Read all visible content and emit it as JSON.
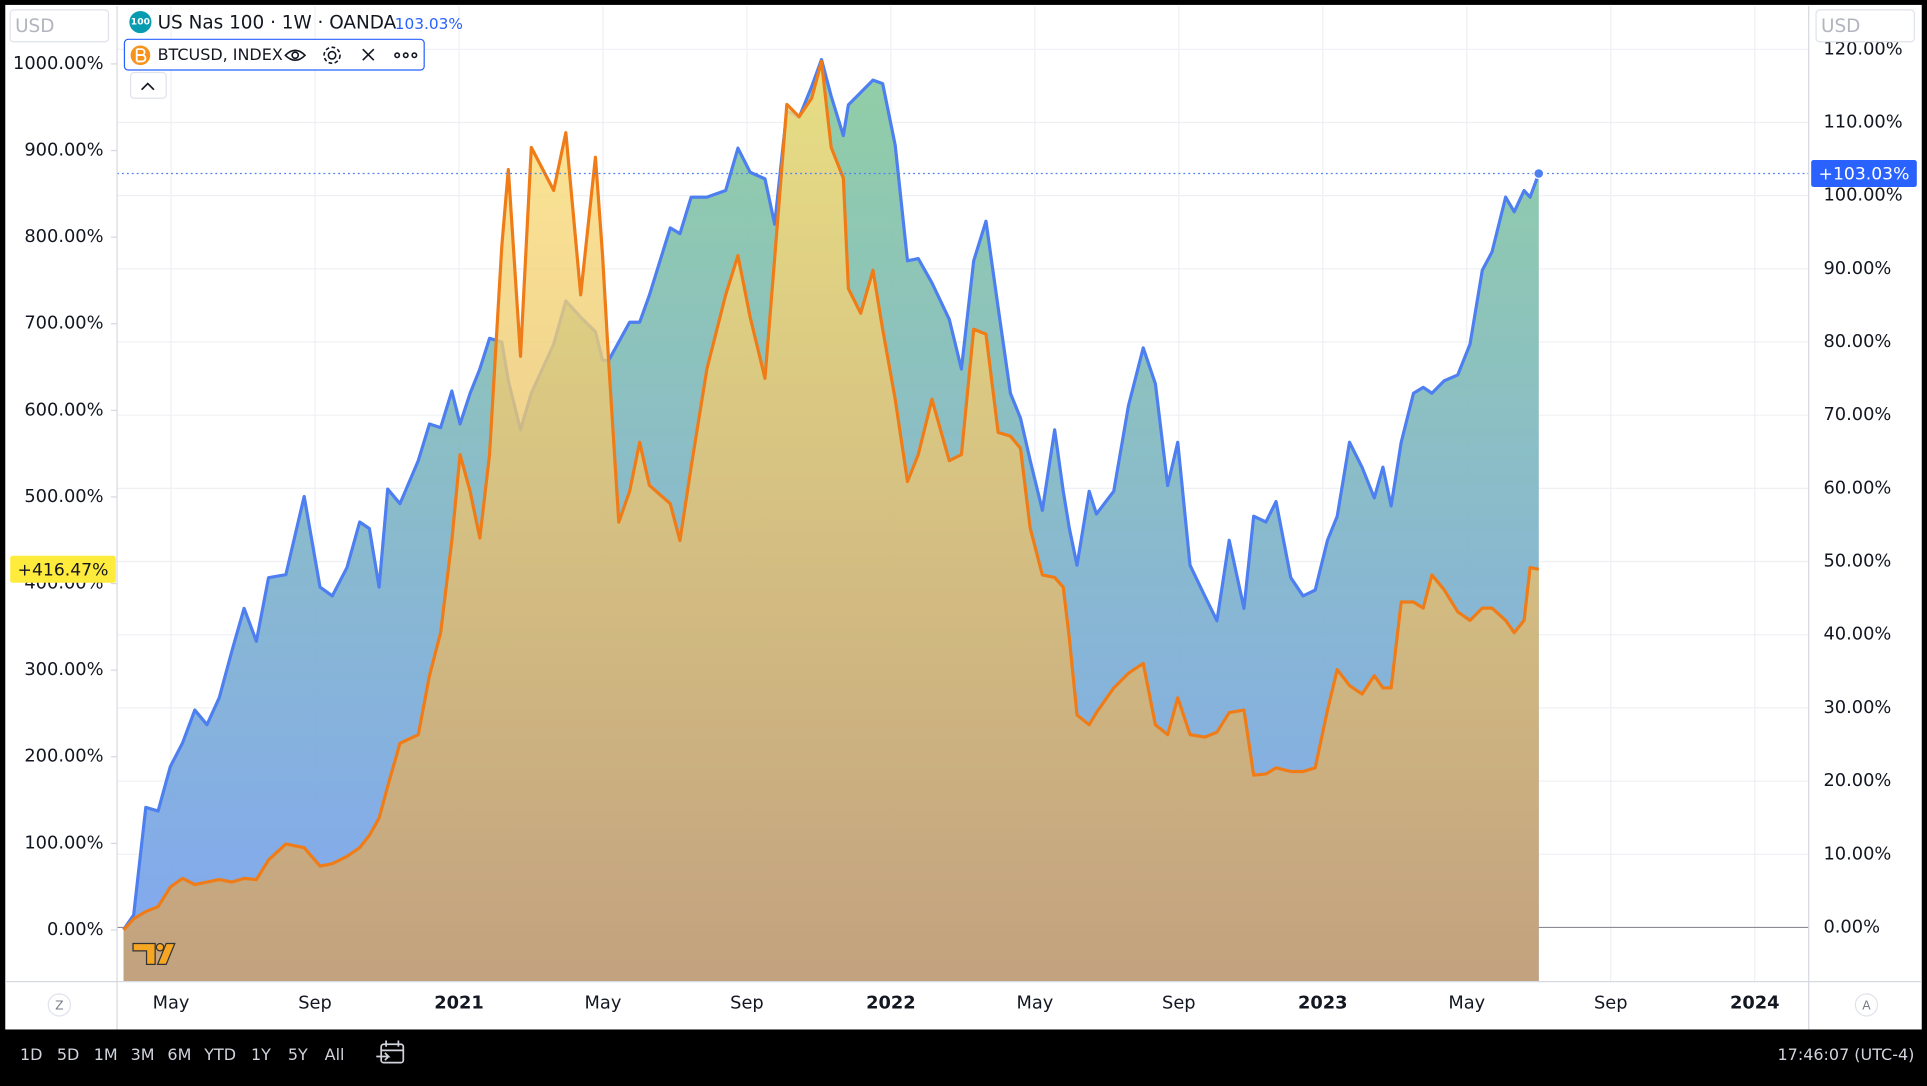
{
  "chart_data": {
    "type": "area",
    "currency": "USD",
    "xlim": [
      2.5,
      49.5
    ],
    "xticks": [
      {
        "value": 4,
        "label": "May"
      },
      {
        "value": 8,
        "label": "Sep"
      },
      {
        "value": 12,
        "label": "2021"
      },
      {
        "value": 16,
        "label": "May"
      },
      {
        "value": 20,
        "label": "Sep"
      },
      {
        "value": 24,
        "label": "2022"
      },
      {
        "value": 28,
        "label": "May"
      },
      {
        "value": 32,
        "label": "Sep"
      },
      {
        "value": 36,
        "label": "2023"
      },
      {
        "value": 40,
        "label": "May"
      },
      {
        "value": 44,
        "label": "Sep"
      },
      {
        "value": 48,
        "label": "2024"
      }
    ],
    "ylim": [
      -59.6,
      1066.7
    ],
    "yticks": [
      {
        "value": 0,
        "label": "0.00%"
      },
      {
        "value": 100,
        "label": "100.00%"
      },
      {
        "value": 200,
        "label": "200.00%"
      },
      {
        "value": 300,
        "label": "300.00%"
      },
      {
        "value": 400,
        "label": "400.00%"
      },
      {
        "value": 500,
        "label": "500.00%"
      },
      {
        "value": 600,
        "label": "600.00%"
      },
      {
        "value": 700,
        "label": "700.00%"
      },
      {
        "value": 800,
        "label": "800.00%"
      },
      {
        "value": 900,
        "label": "900.00%"
      },
      {
        "value": 1000,
        "label": "1000.00%"
      }
    ],
    "y2lim": [
      -7.4,
      125.9
    ],
    "y2ticks": [
      {
        "value": 0,
        "label": "0.00%"
      },
      {
        "value": 10,
        "label": "10.00%"
      },
      {
        "value": 20,
        "label": "20.00%"
      },
      {
        "value": 30,
        "label": "30.00%"
      },
      {
        "value": 40,
        "label": "40.00%"
      },
      {
        "value": 50,
        "label": "50.00%"
      },
      {
        "value": 60,
        "label": "60.00%"
      },
      {
        "value": 70,
        "label": "70.00%"
      },
      {
        "value": 80,
        "label": "80.00%"
      },
      {
        "value": 90,
        "label": "90.00%"
      },
      {
        "value": 100,
        "label": "100.00%"
      },
      {
        "value": 110,
        "label": "110.00%"
      },
      {
        "value": 120,
        "label": "120.00%"
      }
    ],
    "grid": true,
    "x": [
      2.68,
      2.96,
      3.3,
      3.64,
      3.98,
      4.32,
      4.66,
      5.0,
      5.34,
      5.69,
      6.03,
      6.37,
      6.71,
      7.19,
      7.7,
      8.14,
      8.48,
      8.89,
      9.24,
      9.51,
      9.78,
      10.02,
      10.36,
      10.87,
      11.18,
      11.49,
      11.8,
      12.03,
      12.31,
      12.58,
      12.85,
      13.19,
      13.37,
      13.71,
      14.01,
      14.63,
      14.97,
      15.38,
      15.79,
      15.99,
      16.16,
      16.44,
      16.74,
      17.02,
      17.29,
      17.87,
      18.14,
      18.45,
      18.89,
      19.41,
      19.75,
      20.09,
      20.5,
      20.77,
      21.11,
      21.45,
      21.8,
      22.07,
      22.34,
      22.68,
      22.82,
      23.16,
      23.5,
      23.77,
      24.12,
      24.46,
      24.76,
      25.14,
      25.62,
      25.96,
      26.3,
      26.64,
      26.98,
      27.32,
      27.6,
      27.87,
      28.21,
      28.55,
      28.79,
      28.96,
      29.17,
      29.51,
      29.71,
      30.19,
      30.6,
      31.01,
      31.35,
      31.69,
      31.97,
      32.31,
      32.72,
      33.06,
      33.4,
      33.81,
      34.08,
      34.42,
      34.7,
      35.11,
      35.45,
      35.79,
      36.13,
      36.4,
      36.74,
      37.09,
      37.43,
      37.67,
      37.9,
      38.18,
      38.52,
      38.79,
      39.03,
      39.37,
      39.75,
      40.09,
      40.43,
      40.7,
      41.08,
      41.32,
      41.59,
      41.76,
      42.0
    ],
    "series": [
      {
        "name": "US Nas 100 · 1W · OANDA",
        "icon": "100",
        "axis": "y2",
        "color": "#4d7ff0",
        "fill_colors": [
          "#8ccca0",
          "#7aa2f2"
        ],
        "legend_label": "103.03%",
        "price_label": "+103.03%",
        "values": [
          -0.3,
          1.7,
          16.4,
          15.9,
          22.0,
          25.2,
          29.7,
          27.7,
          31.4,
          37.8,
          43.6,
          39.1,
          47.8,
          48.2,
          58.9,
          46.5,
          45.3,
          49.2,
          55.4,
          54.5,
          46.5,
          59.9,
          57.9,
          63.8,
          68.8,
          68.3,
          73.3,
          68.8,
          73.0,
          76.3,
          80.5,
          80.0,
          74.7,
          68.0,
          73.0,
          79.7,
          85.6,
          83.4,
          81.4,
          77.5,
          77.5,
          80.0,
          82.7,
          82.7,
          86.4,
          95.6,
          94.8,
          99.8,
          99.8,
          100.7,
          106.5,
          103.2,
          102.3,
          96.1,
          111.6,
          110.7,
          114.9,
          118.6,
          113.6,
          108.2,
          112.4,
          114.1,
          115.8,
          115.3,
          106.9,
          91.1,
          91.4,
          88.1,
          83.1,
          76.3,
          91.1,
          96.5,
          84.7,
          73.0,
          69.6,
          63.8,
          57.0,
          68.0,
          59.6,
          54.5,
          49.5,
          59.6,
          56.5,
          59.6,
          71.3,
          79.2,
          74.3,
          60.4,
          66.3,
          49.5,
          45.3,
          41.9,
          52.9,
          43.6,
          56.2,
          55.4,
          58.2,
          47.8,
          45.3,
          46.1,
          52.9,
          56.2,
          66.3,
          62.9,
          58.7,
          62.9,
          57.6,
          66.3,
          73.0,
          73.8,
          73.0,
          74.7,
          75.5,
          79.7,
          89.8,
          92.3,
          99.8,
          97.8,
          100.7,
          99.8,
          103.03
        ]
      },
      {
        "name": "BTCUSD, INDEX",
        "axis": "y",
        "color": "#f07c18",
        "fill_colors": [
          "#fde27c",
          "#d3a062"
        ],
        "price_label": "+416.47%",
        "values": [
          0,
          12.8,
          21.3,
          27.0,
          49.6,
          59.6,
          52.5,
          55.3,
          58.2,
          55.3,
          59.6,
          58.2,
          80.9,
          99.3,
          95.0,
          73.8,
          76.6,
          85.1,
          95.0,
          109.2,
          129.1,
          166.0,
          215.6,
          225.5,
          293.6,
          343.3,
          449.6,
          548.9,
          506.4,
          452.5,
          548.9,
          790.1,
          878.0,
          662.4,
          903.5,
          853.9,
          920.6,
          733.3,
          892.2,
          778.7,
          655.3,
          470.9,
          506.4,
          563.1,
          513.5,
          492.2,
          449.6,
          534.8,
          648.2,
          733.3,
          778.7,
          707.8,
          636.9,
          775.9,
          953.2,
          939.0,
          960.3,
          1002.8,
          903.5,
          868.1,
          740.4,
          712.1,
          761.7,
          693.6,
          612.8,
          517.7,
          548.9,
          612.8,
          541.8,
          548.9,
          693.6,
          688.0,
          574.5,
          570.2,
          556.0,
          463.8,
          409.9,
          407.1,
          395.7,
          336.2,
          248.2,
          236.9,
          251.1,
          279.4,
          296.5,
          307.8,
          236.9,
          225.5,
          268.1,
          225.5,
          222.7,
          228.4,
          251.1,
          253.9,
          178.7,
          180.1,
          187.2,
          183.0,
          183.0,
          187.2,
          253.9,
          300.7,
          282.3,
          272.3,
          293.6,
          279.4,
          279.4,
          378.7,
          378.7,
          371.6,
          409.9,
          392.9,
          367.4,
          357.4,
          371.6,
          371.6,
          357.4,
          343.3,
          357.4,
          418.4,
          416.47
        ]
      }
    ]
  },
  "ui": {
    "axis_buttons": [
      "Z",
      "A"
    ],
    "toolbar": {
      "ranges": [
        "1D",
        "5D",
        "1M",
        "3M",
        "6M",
        "YTD",
        "1Y",
        "5Y",
        "All"
      ],
      "time": "17:46:07 (UTC-4)"
    }
  }
}
